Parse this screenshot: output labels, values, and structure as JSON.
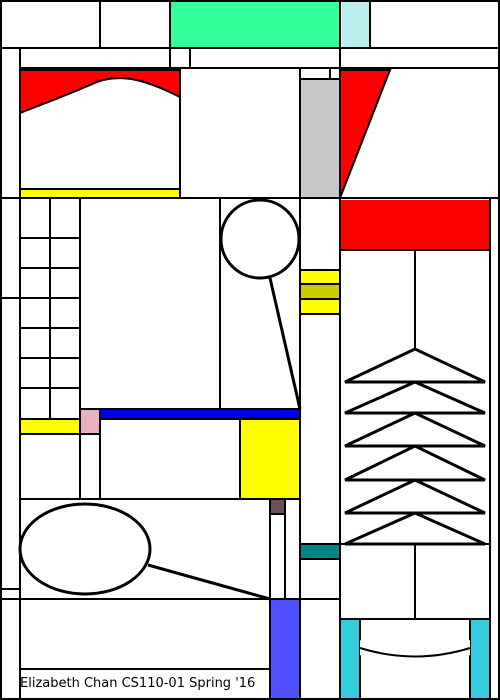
{
  "artwork": {
    "credit_text": "Elizabeth Chan CS110-01 Spring '16"
  },
  "palette": {
    "background": "#ffffff",
    "outline": "#000000",
    "green": "#33ff99",
    "light_cyan": "#bbeeee",
    "red": "#ff0000",
    "yellow": "#ffff00",
    "olive_yellow": "#cccc00",
    "gray": "#c8c8c8",
    "blue": "#0000ee",
    "pink": "#e8b0c0",
    "mauve": "#6e4e5a",
    "teal": "#008888",
    "periwinkle": "#5050ff",
    "cyan": "#33ccdd"
  }
}
